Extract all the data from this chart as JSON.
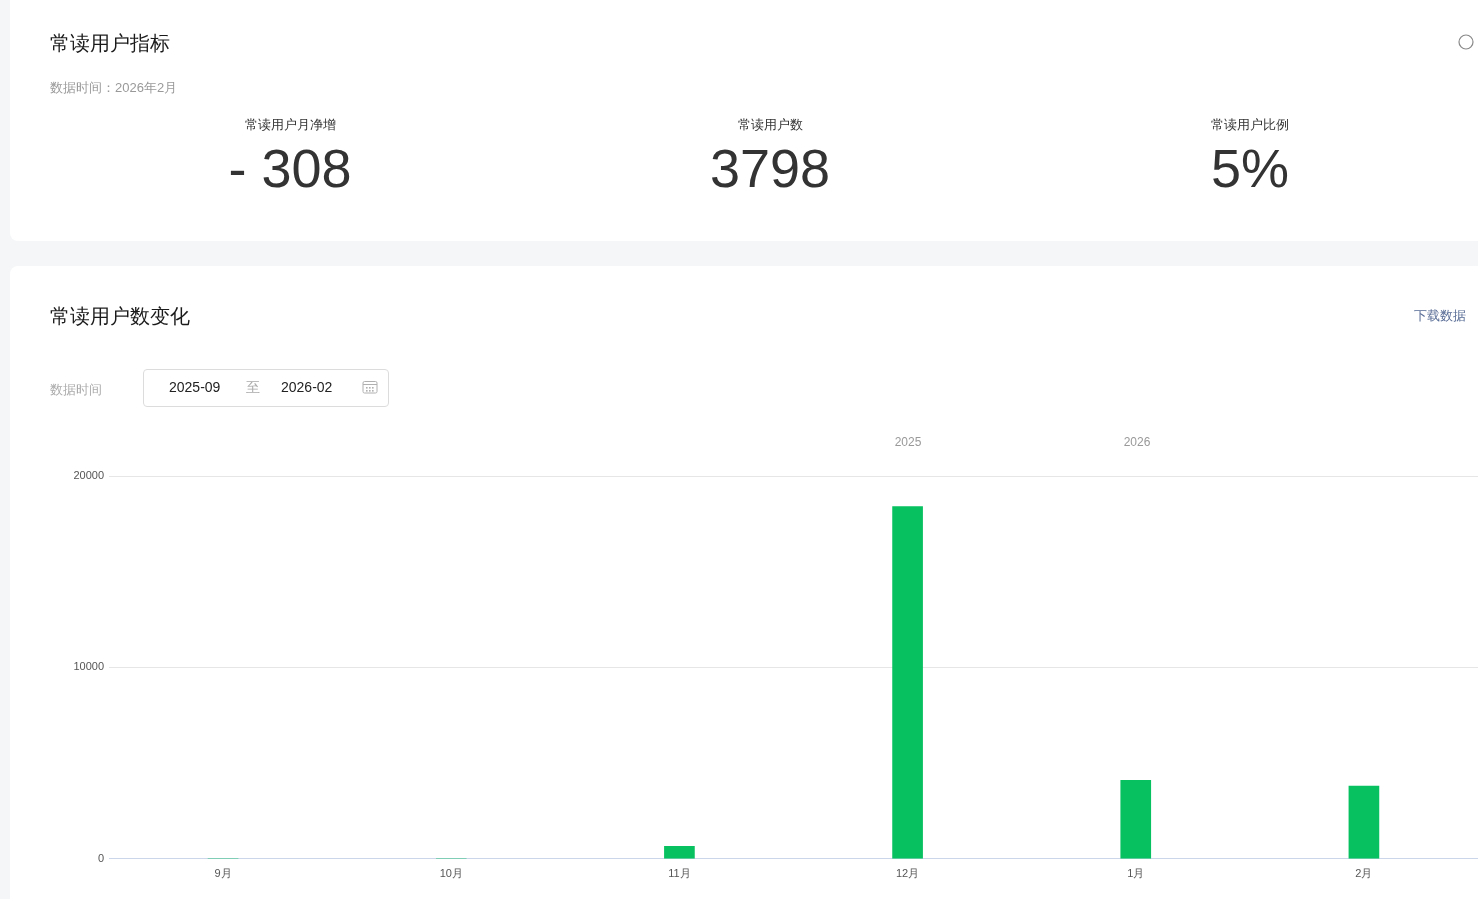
{
  "chart_data": [
    {
      "type": "other",
      "title": "常读用户指标",
      "subtitle": "数据时间：2026年2月",
      "categories": [
        "常读用户月净增",
        "常读用户数",
        "常读用户比例"
      ],
      "value_labels": [
        "- 308",
        "3798",
        "5%"
      ]
    },
    {
      "type": "bar",
      "title": "常读用户数变化",
      "categories": [
        "9月",
        "10月",
        "11月",
        "12月",
        "1月",
        "2月"
      ],
      "values": [
        0,
        0,
        650,
        18400,
        4100,
        3800
      ],
      "color": "#07c160",
      "ylim": [
        0,
        20000
      ],
      "yticks": [
        0,
        10000,
        20000
      ],
      "grid": "y",
      "legend": false,
      "annotations": [
        "数据时间",
        "2025-09",
        "至",
        "2026-02",
        "下载数据",
        "2025",
        "2026"
      ]
    }
  ]
}
